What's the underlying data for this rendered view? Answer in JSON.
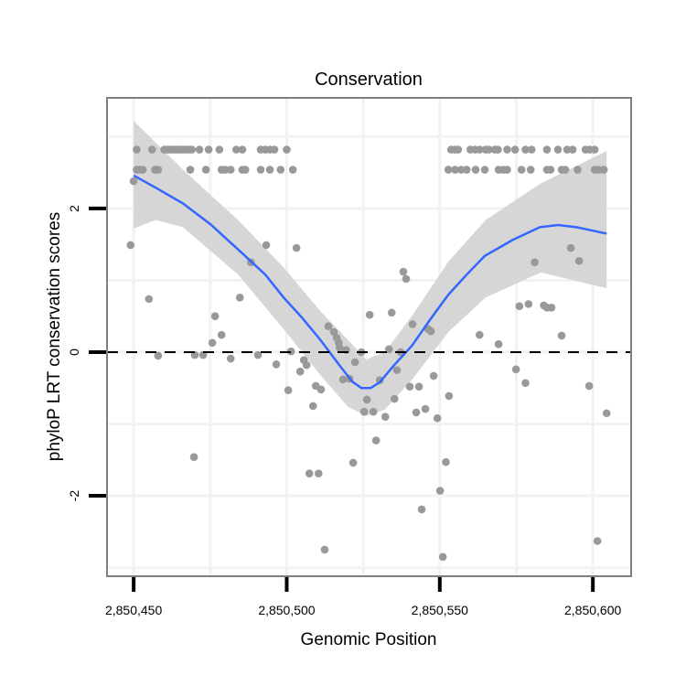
{
  "chart_data": {
    "type": "scatter",
    "title": "Conservation",
    "xlabel": "Genomic Position",
    "ylabel": "phyloP LRT conservation scores",
    "xlim": [
      2850441.3,
      2850612.5
    ],
    "ylim": [
      -3.12,
      3.54
    ],
    "x_offset": 2850000,
    "xticks": [
      2850450,
      2850500,
      2850550,
      2850600
    ],
    "xtick_labels": [
      "2,850,450",
      "2,850,500",
      "2,850,550",
      "2,850,600"
    ],
    "yticks": [
      -2,
      0,
      2
    ],
    "ytick_labels": [
      "-2",
      "0",
      "2"
    ],
    "minor_x": [
      475,
      525,
      575
    ],
    "minor_y": [
      -3,
      -1,
      1,
      3
    ],
    "grid": true,
    "reference_line_y": 0,
    "colors": {
      "points": "#999999",
      "smooth": "#3366FF",
      "band": "#d6d6d6",
      "panel_border": "#7f7f7f",
      "grid": "#f2f2f2"
    },
    "points_top_row": {
      "y": 2.82,
      "x": [
        451,
        456,
        460,
        461,
        462,
        463,
        464,
        465,
        466,
        467,
        468,
        469,
        471.5,
        474.5,
        478,
        483.5,
        485.5,
        491.5,
        493,
        494.5,
        496,
        500,
        553.7,
        555,
        556,
        560,
        561.5,
        563,
        565,
        566,
        568,
        569,
        572,
        574.6,
        578,
        580,
        585,
        588.6,
        591.6,
        593.4,
        597.6,
        599,
        600.6
      ]
    },
    "points_second_row": {
      "y": 2.54,
      "x": [
        451,
        452,
        453,
        457,
        458,
        468.5,
        473.6,
        478.7,
        480,
        481.7,
        485.5,
        486.5,
        491.5,
        494.5,
        498,
        502,
        552.8,
        555,
        557,
        558.8,
        561.7,
        564.7,
        569.2,
        570.7,
        572,
        576.7,
        579.7,
        585,
        586.2,
        589.8,
        591,
        595,
        600.6,
        602,
        603.6
      ]
    },
    "points": [
      [
        450,
        2.38
      ],
      [
        449,
        1.49
      ],
      [
        455,
        0.74
      ],
      [
        458,
        -0.05
      ],
      [
        469.7,
        -1.46
      ],
      [
        470,
        -0.04
      ],
      [
        472.7,
        -0.04
      ],
      [
        475.7,
        0.13
      ],
      [
        476.6,
        0.5
      ],
      [
        478.7,
        0.24
      ],
      [
        481.7,
        -0.09
      ],
      [
        484.7,
        0.76
      ],
      [
        488.3,
        1.25
      ],
      [
        490.6,
        -0.04
      ],
      [
        493.3,
        1.49
      ],
      [
        496.6,
        -0.17
      ],
      [
        500.5,
        -0.53
      ],
      [
        501.4,
        0.01
      ],
      [
        503.2,
        1.45
      ],
      [
        504.4,
        -0.27
      ],
      [
        505.6,
        -0.11
      ],
      [
        506.5,
        -0.18
      ],
      [
        507.4,
        -1.69
      ],
      [
        508.6,
        -0.75
      ],
      [
        509.5,
        -0.47
      ],
      [
        510.4,
        -1.69
      ],
      [
        511.2,
        -0.52
      ],
      [
        512.4,
        -2.75
      ],
      [
        513.6,
        0.36
      ],
      [
        515.4,
        0.28
      ],
      [
        516.3,
        0.2
      ],
      [
        517,
        0.13
      ],
      [
        517.3,
        0.06
      ],
      [
        518.4,
        -0.38
      ],
      [
        519.4,
        0.03
      ],
      [
        520.5,
        -0.37
      ],
      [
        521.7,
        -1.54
      ],
      [
        522.3,
        -0.14
      ],
      [
        524.4,
        0.0
      ],
      [
        525.3,
        -0.83
      ],
      [
        526.2,
        -0.66
      ],
      [
        527.1,
        0.52
      ],
      [
        528.3,
        -0.83
      ],
      [
        529.2,
        -1.23
      ],
      [
        530.4,
        -0.39
      ],
      [
        532.2,
        -0.9
      ],
      [
        533.4,
        0.04
      ],
      [
        534.3,
        0.55
      ],
      [
        535.2,
        -0.65
      ],
      [
        536,
        -0.25
      ],
      [
        537.2,
        0
      ],
      [
        538.1,
        1.12
      ],
      [
        539,
        1.02
      ],
      [
        540.2,
        -0.48
      ],
      [
        541.1,
        0.39
      ],
      [
        542.3,
        -0.84
      ],
      [
        543.2,
        -0.48
      ],
      [
        544.1,
        -2.19
      ],
      [
        545.3,
        -0.79
      ],
      [
        546.2,
        0.32
      ],
      [
        547.1,
        0.29
      ],
      [
        548,
        -0.33
      ],
      [
        549.2,
        -0.92
      ],
      [
        550.1,
        -1.93
      ],
      [
        551,
        -2.85
      ],
      [
        552,
        -1.53
      ],
      [
        553,
        -0.61
      ],
      [
        563,
        0.24
      ],
      [
        569.2,
        0.11
      ],
      [
        574.9,
        -0.24
      ],
      [
        576,
        0.64
      ],
      [
        578,
        -0.43
      ],
      [
        579,
        0.67
      ],
      [
        581,
        1.25
      ],
      [
        584,
        0.65
      ],
      [
        585,
        0.62
      ],
      [
        586.5,
        0.62
      ],
      [
        589.8,
        0.23
      ],
      [
        592.8,
        1.45
      ],
      [
        595.5,
        1.27
      ],
      [
        598.8,
        -0.47
      ],
      [
        601.5,
        -2.63
      ],
      [
        604.5,
        -0.85
      ]
    ],
    "smooth": [
      [
        450,
        2.46
      ],
      [
        457.2,
        2.29
      ],
      [
        466.1,
        2.07
      ],
      [
        475.1,
        1.78
      ],
      [
        484.1,
        1.43
      ],
      [
        493,
        1.08
      ],
      [
        499,
        0.76
      ],
      [
        505,
        0.48
      ],
      [
        511,
        0.17
      ],
      [
        517,
        -0.17
      ],
      [
        521.4,
        -0.41
      ],
      [
        524.4,
        -0.5
      ],
      [
        527.4,
        -0.5
      ],
      [
        530.4,
        -0.42
      ],
      [
        534.9,
        -0.19
      ],
      [
        540.9,
        0.09
      ],
      [
        546.8,
        0.45
      ],
      [
        552.8,
        0.8
      ],
      [
        558.8,
        1.08
      ],
      [
        564.7,
        1.34
      ],
      [
        573.7,
        1.56
      ],
      [
        582.7,
        1.74
      ],
      [
        588.6,
        1.77
      ],
      [
        594.6,
        1.74
      ],
      [
        604.5,
        1.65
      ]
    ],
    "band_upper": [
      [
        450,
        3.22
      ],
      [
        466.1,
        2.54
      ],
      [
        484.1,
        1.84
      ],
      [
        499,
        1.18
      ],
      [
        511,
        0.57
      ],
      [
        520,
        0.17
      ],
      [
        526,
        -0.1
      ],
      [
        532,
        0.0
      ],
      [
        541,
        0.51
      ],
      [
        553,
        1.27
      ],
      [
        565,
        1.84
      ],
      [
        583,
        2.35
      ],
      [
        604.5,
        2.8
      ]
    ],
    "band_lower": [
      [
        450,
        1.72
      ],
      [
        457.2,
        1.84
      ],
      [
        466.1,
        1.74
      ],
      [
        484.1,
        1.08
      ],
      [
        499,
        0.32
      ],
      [
        511,
        -0.32
      ],
      [
        520,
        -0.76
      ],
      [
        526,
        -0.89
      ],
      [
        532,
        -0.8
      ],
      [
        541,
        -0.38
      ],
      [
        553,
        0.29
      ],
      [
        565,
        0.76
      ],
      [
        583,
        1.11
      ],
      [
        604.5,
        0.89
      ]
    ]
  }
}
